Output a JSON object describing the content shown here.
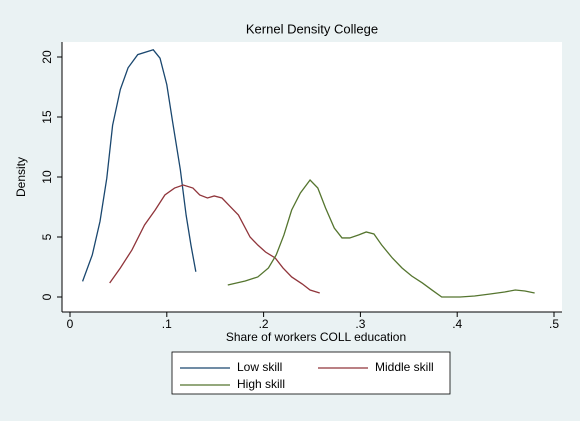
{
  "chart_data": {
    "type": "line",
    "title": "Kernel Density College",
    "x_label": "Share of workers COLL education",
    "y_label": "Density",
    "xlim": [
      0,
      0.5
    ],
    "ylim": [
      0,
      20
    ],
    "xticks": [
      0,
      {
        "value": 0.1,
        "label": ".1"
      },
      {
        "value": 0.2,
        "label": ".2"
      },
      {
        "value": 0.3,
        "label": ".3"
      },
      {
        "value": 0.4,
        "label": ".4"
      },
      {
        "value": 0.5,
        "label": ".5"
      }
    ],
    "yticks": [
      0,
      5,
      10,
      15,
      20
    ],
    "legend": "bottom",
    "series": [
      {
        "name": "Low skill",
        "color": "#1a476f",
        "x": [
          0.013,
          0.023,
          0.031,
          0.038,
          0.044,
          0.052,
          0.06,
          0.07,
          0.086,
          0.093,
          0.1,
          0.106,
          0.114,
          0.12,
          0.125,
          0.13
        ],
        "values": [
          1.3,
          3.5,
          6.3,
          9.9,
          14.3,
          17.3,
          19.1,
          20.2,
          20.6,
          19.9,
          17.7,
          14.6,
          10.6,
          6.8,
          4.3,
          2.1
        ]
      },
      {
        "name": "Middle skill",
        "color": "#90353b",
        "x": [
          0.041,
          0.052,
          0.064,
          0.077,
          0.088,
          0.098,
          0.108,
          0.117,
          0.127,
          0.134,
          0.142,
          0.149,
          0.157,
          0.165,
          0.174,
          0.186,
          0.194,
          0.202,
          0.212,
          0.22,
          0.229,
          0.24,
          0.248,
          0.258
        ],
        "values": [
          1.17,
          2.42,
          3.92,
          6.0,
          7.25,
          8.5,
          9.08,
          9.33,
          9.08,
          8.5,
          8.25,
          8.42,
          8.25,
          7.58,
          6.83,
          5.0,
          4.33,
          3.75,
          3.25,
          2.42,
          1.67,
          1.08,
          0.58,
          0.33
        ]
      },
      {
        "name": "High skill",
        "color": "#55752f",
        "x": [
          0.163,
          0.181,
          0.194,
          0.205,
          0.213,
          0.221,
          0.229,
          0.238,
          0.248,
          0.256,
          0.264,
          0.273,
          0.281,
          0.289,
          0.298,
          0.306,
          0.314,
          0.322,
          0.333,
          0.343,
          0.353,
          0.364,
          0.374,
          0.384,
          0.403,
          0.418,
          0.434,
          0.449,
          0.46,
          0.47,
          0.48
        ],
        "values": [
          1.0,
          1.33,
          1.67,
          2.42,
          3.5,
          5.17,
          7.25,
          8.67,
          9.75,
          9.08,
          7.42,
          5.75,
          4.92,
          4.92,
          5.17,
          5.42,
          5.25,
          4.33,
          3.25,
          2.42,
          1.75,
          1.17,
          0.58,
          0,
          0,
          0.08,
          0.25,
          0.42,
          0.58,
          0.5,
          0.33
        ]
      }
    ]
  }
}
